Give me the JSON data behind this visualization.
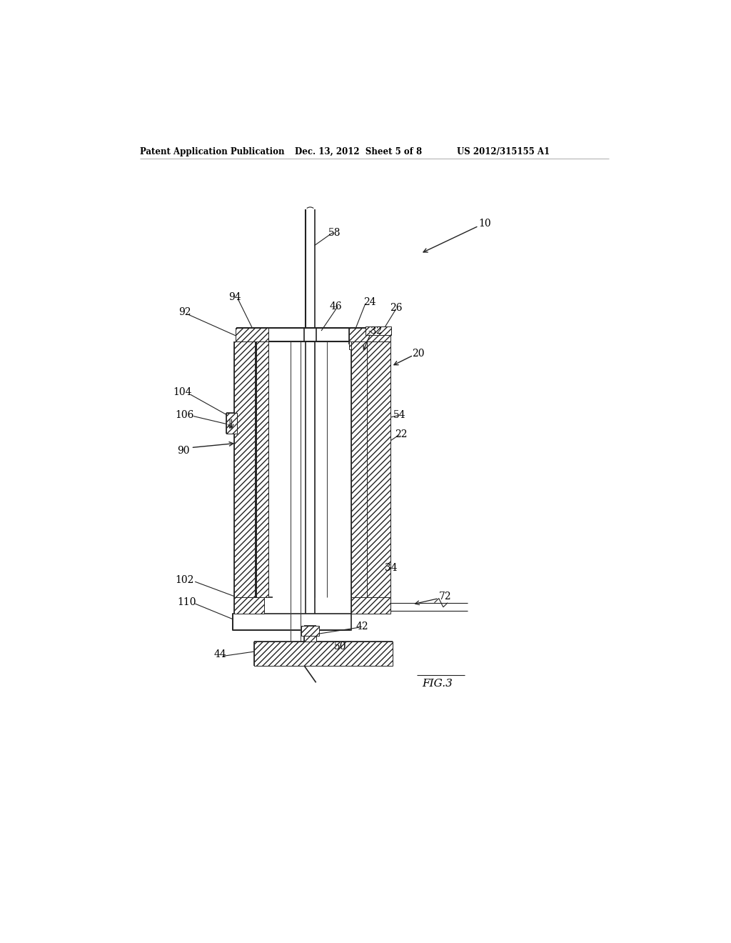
{
  "bg_color": "#ffffff",
  "line_color": "#222222",
  "header_text": "Patent Application Publication",
  "header_date": "Dec. 13, 2012  Sheet 5 of 8",
  "header_patent": "US 2012/315155 A1",
  "fig_label": "FIG.3"
}
